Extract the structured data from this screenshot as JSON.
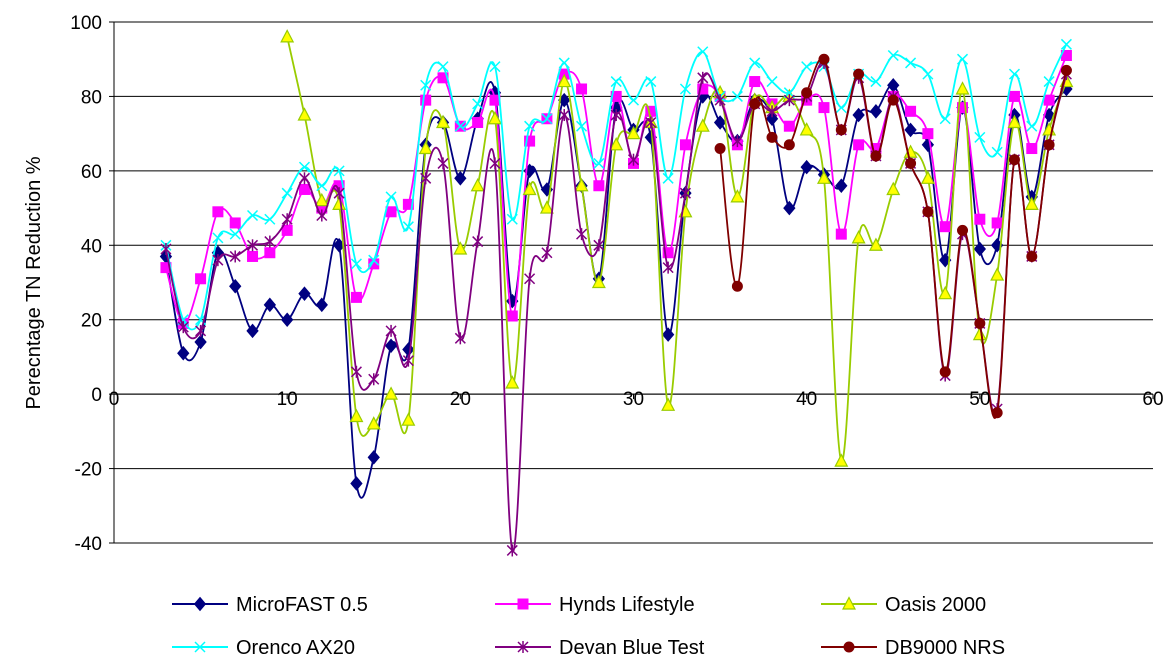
{
  "chart_data": {
    "type": "line",
    "title": "",
    "xlabel": "",
    "ylabel": "Perecntage TN Reduction %",
    "xlim": [
      0,
      60
    ],
    "ylim": [
      -40,
      100
    ],
    "xticks": [
      0,
      10,
      20,
      30,
      40,
      50,
      60
    ],
    "yticks": [
      -40,
      -20,
      0,
      20,
      40,
      60,
      80,
      100
    ],
    "grid": "horizontal",
    "legend_position": "bottom",
    "series": [
      {
        "name": "MicroFAST 0.5",
        "color": "#000080",
        "marker": "diamond",
        "x": [
          3,
          4,
          5,
          6,
          7,
          8,
          9,
          10,
          11,
          12,
          13,
          14,
          15,
          16,
          17,
          18,
          19,
          20,
          21,
          22,
          23,
          24,
          25,
          26,
          27,
          28,
          29,
          30,
          31,
          32,
          33,
          34,
          35,
          36,
          37,
          38,
          39,
          40,
          41,
          42,
          43,
          44,
          45,
          46,
          47,
          48,
          49,
          50,
          51,
          52,
          53,
          54,
          55
        ],
        "y": [
          37,
          11,
          14,
          38,
          29,
          17,
          24,
          20,
          27,
          24,
          40,
          -24,
          -17,
          13,
          12,
          67,
          73,
          58,
          74,
          81,
          25,
          60,
          55,
          79,
          56,
          31,
          77,
          71,
          69,
          16,
          54,
          80,
          73,
          68,
          79,
          74,
          50,
          61,
          59,
          56,
          75,
          76,
          83,
          71,
          67,
          36,
          77,
          39,
          40,
          75,
          53,
          75,
          82
        ]
      },
      {
        "name": "Hynds Lifestyle",
        "color": "#FF00FF",
        "marker": "square",
        "x": [
          3,
          4,
          5,
          6,
          7,
          8,
          9,
          10,
          11,
          12,
          13,
          14,
          15,
          16,
          17,
          18,
          19,
          20,
          21,
          22,
          23,
          24,
          25,
          26,
          27,
          28,
          29,
          30,
          31,
          32,
          33,
          34,
          35,
          36,
          37,
          38,
          39,
          40,
          41,
          42,
          43,
          44,
          45,
          46,
          47,
          48,
          49,
          50,
          51,
          52,
          53,
          54,
          55
        ],
        "y": [
          34,
          19,
          31,
          49,
          46,
          37,
          38,
          44,
          55,
          50,
          56,
          26,
          35,
          49,
          51,
          79,
          85,
          72,
          73,
          79,
          21,
          68,
          74,
          86,
          82,
          56,
          80,
          62,
          76,
          38,
          67,
          82,
          80,
          67,
          84,
          78,
          72,
          79,
          77,
          43,
          67,
          66,
          80,
          76,
          70,
          45,
          77,
          47,
          46,
          80,
          66,
          79,
          91
        ]
      },
      {
        "name": "Oasis 2000",
        "color": "#99CC00",
        "marker": "triangle",
        "x": [
          10,
          11,
          12,
          13,
          14,
          15,
          16,
          17,
          18,
          19,
          20,
          21,
          22,
          23,
          24,
          25,
          26,
          27,
          28,
          29,
          30,
          31,
          32,
          33,
          34,
          35,
          36,
          37,
          38,
          39,
          40,
          41,
          42,
          43,
          44,
          45,
          46,
          47,
          48,
          49,
          50,
          51,
          52,
          53,
          54,
          55
        ],
        "y": [
          96,
          75,
          52,
          51,
          -6,
          -8,
          0,
          -7,
          66,
          73,
          39,
          56,
          74,
          3,
          55,
          50,
          84,
          56,
          30,
          67,
          70,
          73,
          -3,
          49,
          72,
          81,
          53,
          79,
          77,
          80,
          71,
          58,
          -18,
          42,
          40,
          55,
          65,
          58,
          27,
          82,
          16,
          32,
          73,
          51,
          71,
          84
        ]
      },
      {
        "name": "Orenco AX20",
        "color": "#00FFFF",
        "marker": "x",
        "x": [
          3,
          4,
          5,
          6,
          7,
          8,
          9,
          10,
          11,
          12,
          13,
          14,
          15,
          16,
          17,
          18,
          19,
          20,
          21,
          22,
          23,
          24,
          25,
          26,
          27,
          28,
          29,
          30,
          31,
          32,
          33,
          34,
          35,
          36,
          37,
          38,
          39,
          40,
          41,
          42,
          43,
          44,
          45,
          46,
          47,
          48,
          49,
          50,
          51,
          52,
          53,
          54,
          55
        ],
        "y": [
          40,
          20,
          20,
          42,
          43,
          48,
          47,
          54,
          61,
          56,
          60,
          35,
          36,
          53,
          45,
          83,
          88,
          72,
          78,
          88,
          47,
          72,
          74,
          89,
          72,
          62,
          84,
          79,
          84,
          58,
          82,
          92,
          80,
          80,
          89,
          84,
          81,
          88,
          88,
          77,
          86,
          84,
          91,
          89,
          86,
          74,
          90,
          69,
          65,
          86,
          72,
          84,
          94
        ]
      },
      {
        "name": "Devan Blue Test",
        "color": "#800080",
        "marker": "star",
        "x": [
          3,
          4,
          5,
          6,
          7,
          8,
          9,
          10,
          11,
          12,
          13,
          14,
          15,
          16,
          17,
          18,
          19,
          20,
          21,
          22,
          23,
          24,
          25,
          26,
          27,
          28,
          29,
          30,
          31,
          32,
          33,
          34,
          35,
          36,
          37,
          38,
          39,
          40,
          41,
          42,
          43,
          44,
          45,
          46,
          47,
          48,
          49,
          50,
          51,
          52,
          53,
          54,
          55
        ],
        "y": [
          39,
          18,
          17,
          36,
          37,
          40,
          41,
          47,
          58,
          48,
          54,
          6,
          4,
          17,
          9,
          58,
          62,
          15,
          41,
          62,
          -42,
          31,
          38,
          75,
          43,
          40,
          75,
          63,
          73,
          34,
          54,
          85,
          79,
          68,
          78,
          76,
          79,
          80,
          89,
          71,
          85,
          64,
          80,
          62,
          49,
          5,
          43,
          19,
          -4,
          63,
          37,
          67,
          86
        ]
      },
      {
        "name": "DB9000 NRS",
        "color": "#800000",
        "marker": "circle",
        "x": [
          35,
          36,
          37,
          38,
          39,
          40,
          41,
          42,
          43,
          44,
          45,
          46,
          47,
          48,
          49,
          50,
          51,
          52,
          53,
          54,
          55
        ],
        "y": [
          66,
          29,
          78,
          69,
          67,
          81,
          90,
          71,
          86,
          64,
          79,
          62,
          49,
          6,
          44,
          19,
          -5,
          63,
          37,
          67,
          87
        ]
      }
    ]
  }
}
